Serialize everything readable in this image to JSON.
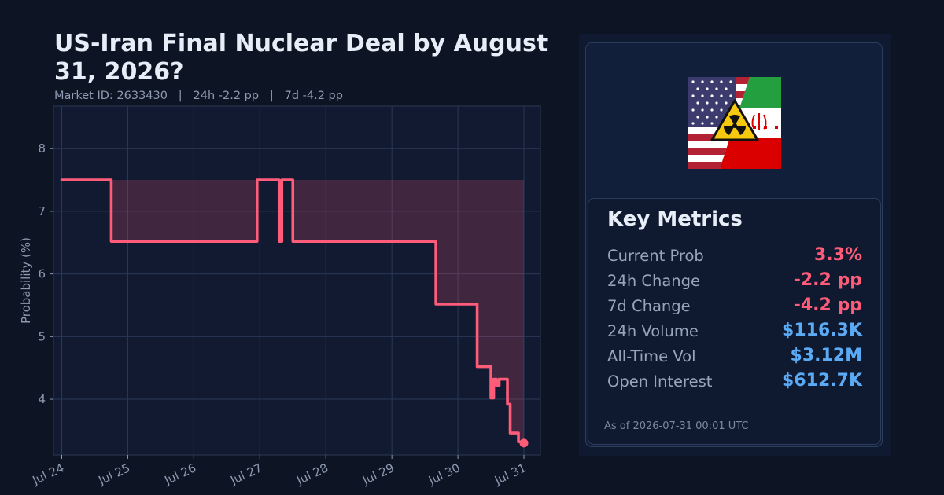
{
  "title": "US-Iran Final Nuclear Deal by August 31, 2026?",
  "subtitle": "Market ID: 2633430   |   24h -2.2 pp   |   7d -4.2 pp",
  "colors": {
    "background": "#0d1424",
    "plot_bg": "#111a30",
    "line": "#ff5c7a",
    "fill": "#ff5c7a",
    "negative": "#ff5c7a",
    "positive": "#5aaaf5",
    "grid": "#2a3856"
  },
  "chart_data": {
    "type": "line",
    "title": "",
    "xlabel": "",
    "ylabel": "Probability (%)",
    "x_tick_labels": [
      "Jul 24",
      "Jul 25",
      "Jul 26",
      "Jul 27",
      "Jul 28",
      "Jul 29",
      "Jul 30",
      "Jul 31"
    ],
    "y_tick_labels": [
      "4",
      "5",
      "6",
      "7",
      "8"
    ],
    "y_ticks": [
      4,
      5,
      6,
      7,
      8
    ],
    "xlim": [
      "2026-07-23 21:00",
      "2026-07-31 06:00"
    ],
    "ylim": [
      3.11,
      8.68
    ],
    "grid": true,
    "fill_to_max": true,
    "end_marker": true,
    "series": [
      {
        "x": [
          "2026-07-24 00:00",
          "2026-07-24 18:00",
          "2026-07-24 18:00",
          "2026-07-26 23:00",
          "2026-07-26 23:00",
          "2026-07-27 07:00",
          "2026-07-27 07:00",
          "2026-07-27 08:00",
          "2026-07-27 08:00",
          "2026-07-27 09:00",
          "2026-07-27 09:00",
          "2026-07-27 12:00",
          "2026-07-27 12:00",
          "2026-07-29 16:00",
          "2026-07-29 16:00",
          "2026-07-30 07:00",
          "2026-07-30 07:00",
          "2026-07-30 12:00",
          "2026-07-30 12:00",
          "2026-07-30 13:00",
          "2026-07-30 13:00",
          "2026-07-30 14:00",
          "2026-07-30 14:00",
          "2026-07-30 15:00",
          "2026-07-30 15:00",
          "2026-07-30 18:00",
          "2026-07-30 18:00",
          "2026-07-30 19:00",
          "2026-07-30 19:00",
          "2026-07-30 20:00",
          "2026-07-30 20:00",
          "2026-07-30 22:00",
          "2026-07-30 22:00",
          "2026-07-30 23:00",
          "2026-07-30 23:00",
          "2026-07-31 00:00"
        ],
        "y": [
          7.5,
          7.5,
          6.52,
          6.52,
          7.5,
          7.5,
          6.52,
          6.52,
          7.5,
          7.5,
          7.5,
          7.5,
          6.52,
          6.52,
          5.52,
          5.52,
          4.52,
          4.52,
          4.02,
          4.02,
          4.32,
          4.32,
          4.22,
          4.22,
          4.32,
          4.32,
          3.92,
          3.92,
          3.46,
          3.46,
          3.46,
          3.46,
          3.32,
          3.32,
          3.32,
          3.3
        ]
      }
    ]
  },
  "side_panel": {
    "flag_icon": "us-iran-flag-with-radiation-icon",
    "metrics_title": "Key Metrics",
    "metrics": [
      {
        "label": "Current Prob",
        "value": "3.3%",
        "tone": "negative"
      },
      {
        "label": "24h Change",
        "value": "-2.2 pp",
        "tone": "negative"
      },
      {
        "label": "7d Change",
        "value": "-4.2 pp",
        "tone": "negative"
      },
      {
        "label": "24h Volume",
        "value": "$116.3K",
        "tone": "positive"
      },
      {
        "label": "All-Time Vol",
        "value": "$3.12M",
        "tone": "positive"
      },
      {
        "label": "Open Interest",
        "value": "$612.7K",
        "tone": "positive"
      }
    ],
    "as_of": "As of 2026-07-31 00:01 UTC"
  }
}
